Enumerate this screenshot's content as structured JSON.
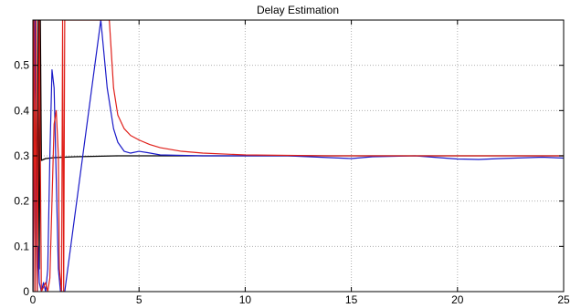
{
  "chart_data": {
    "type": "line",
    "title": "Delay Estimation",
    "xlabel": "",
    "ylabel": "",
    "xlim": [
      0,
      25
    ],
    "ylim": [
      0,
      0.6
    ],
    "xticks": [
      0,
      5,
      10,
      15,
      20,
      25
    ],
    "yticks": [
      0,
      0.1,
      0.2,
      0.3,
      0.4,
      0.5
    ],
    "grid": true,
    "colors": {
      "black_series": "#000000",
      "blue_series": "#1a1ac8",
      "red_series": "#e0201a",
      "grid": "#b0b0b0"
    },
    "series": [
      {
        "color": "#000000",
        "x": [
          0.0,
          0.05,
          0.1,
          0.15,
          0.2,
          0.25,
          0.3,
          0.35,
          0.4,
          0.5,
          0.6,
          0.8,
          1.0,
          1.5,
          2,
          3,
          4,
          5,
          6,
          8,
          10,
          12,
          15,
          18,
          20,
          22,
          25
        ],
        "y": [
          0.0,
          0.6,
          0.0,
          0.6,
          0.0,
          0.6,
          0.05,
          0.6,
          0.29,
          0.292,
          0.294,
          0.295,
          0.296,
          0.297,
          0.298,
          0.299,
          0.3,
          0.3,
          0.3,
          0.3,
          0.3,
          0.3,
          0.3,
          0.3,
          0.3,
          0.3,
          0.3
        ]
      },
      {
        "color": "#1a1ac8",
        "x": [
          0.0,
          0.1,
          0.2,
          0.25,
          0.3,
          0.4,
          0.5,
          0.6,
          0.7,
          0.8,
          0.9,
          1.0,
          1.1,
          1.2,
          1.3,
          1.4,
          1.5,
          3.2,
          3.5,
          3.8,
          4.0,
          4.3,
          4.6,
          5.0,
          5.4,
          6.0,
          7,
          8,
          10,
          12,
          14,
          15,
          16,
          18,
          20,
          21,
          22,
          24,
          25
        ],
        "y": [
          0.0,
          0.6,
          0.0,
          0.1,
          0.02,
          0.0,
          0.02,
          0.0,
          0.05,
          0.3,
          0.49,
          0.45,
          0.25,
          0.05,
          0.0,
          0.0,
          0.0,
          0.6,
          0.45,
          0.36,
          0.33,
          0.31,
          0.306,
          0.31,
          0.307,
          0.302,
          0.301,
          0.3,
          0.3,
          0.3,
          0.296,
          0.294,
          0.298,
          0.3,
          0.293,
          0.292,
          0.294,
          0.297,
          0.295
        ]
      },
      {
        "color": "#e0201a",
        "x": [
          0.0,
          0.05,
          0.1,
          0.15,
          0.2,
          0.3,
          0.4,
          0.5,
          0.6,
          0.7,
          0.8,
          0.9,
          1.0,
          1.1,
          1.2,
          1.25,
          1.35,
          1.4,
          1.45,
          1.5,
          3.6,
          3.8,
          4.0,
          4.3,
          4.6,
          5.0,
          5.5,
          6,
          7,
          8,
          10,
          12,
          14,
          16,
          18,
          20,
          22,
          25
        ],
        "y": [
          0.0,
          0.6,
          0.0,
          0.6,
          0.0,
          0.6,
          0.0,
          0.01,
          0.02,
          0.0,
          0.03,
          0.2,
          0.37,
          0.4,
          0.3,
          0.05,
          0.0,
          0.6,
          0.0,
          0.6,
          0.6,
          0.45,
          0.39,
          0.36,
          0.345,
          0.335,
          0.325,
          0.318,
          0.31,
          0.306,
          0.302,
          0.301,
          0.3,
          0.3,
          0.3,
          0.3,
          0.3,
          0.3
        ]
      }
    ]
  }
}
